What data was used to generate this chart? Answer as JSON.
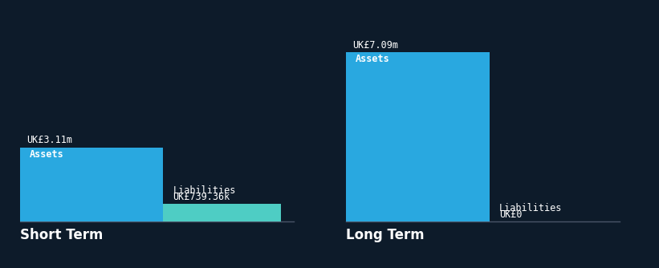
{
  "background_color": "#0d1b2a",
  "text_color": "#ffffff",
  "short_term": {
    "label": "Short Term",
    "asset_value": 3.11,
    "asset_label": "UK£3.11m",
    "asset_color": "#29a8e0",
    "liab_value": 0.73936,
    "liab_label": "UK£739.36k",
    "liab_color": "#4ecdc4"
  },
  "long_term": {
    "label": "Long Term",
    "asset_value": 7.09,
    "asset_label": "UK£7.09m",
    "asset_color": "#29a8e0",
    "liab_value": 0.0,
    "liab_label": "UK£0",
    "liab_color": "#29a8e0"
  },
  "y_max": 7.09,
  "label_fontsize": 8.5,
  "inside_label_fontsize": 8.5,
  "group_label_fontsize": 12
}
